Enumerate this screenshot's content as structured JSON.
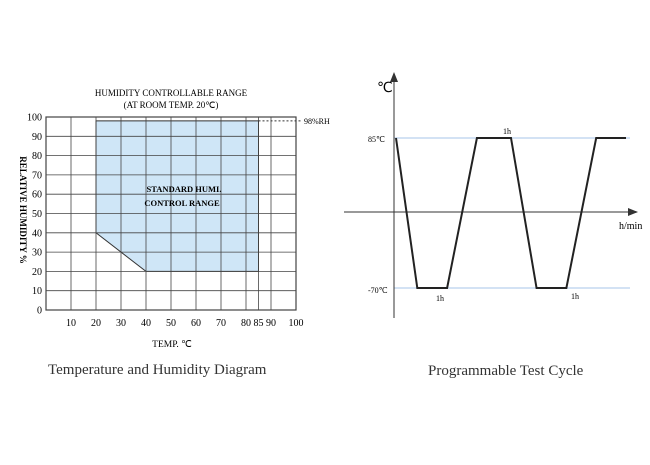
{
  "captions": {
    "left": "Temperature and Humidity Diagram",
    "right": "Programmable Test Cycle"
  },
  "colors": {
    "grid": "#444444",
    "region_fill": "#cfe6f7",
    "region_stroke": "#333333",
    "cycle_line": "#222222",
    "guide_line": "#8ab0e0"
  },
  "chart_data": [
    {
      "type": "area",
      "title": "HUMIDITY CONTROLLABLE RANGE",
      "subtitle": "(AT ROOM TEMP. 20℃)",
      "xlabel": "TEMP. ℃",
      "ylabel": "RELATIVE HUMIDITY %",
      "xlim": [
        0,
        100
      ],
      "ylim": [
        0,
        100
      ],
      "x_ticks": [
        10,
        20,
        30,
        40,
        50,
        60,
        70,
        80,
        85,
        90,
        100
      ],
      "y_ticks": [
        0,
        10,
        20,
        30,
        40,
        50,
        60,
        70,
        80,
        90,
        100
      ],
      "grid": true,
      "region": {
        "label_line1": "STANDARD HUMI.",
        "label_line2": "CONTROL RANGE",
        "x": [
          20,
          85,
          85,
          40,
          20
        ],
        "y": [
          98,
          98,
          20,
          20,
          40
        ]
      },
      "reference_line": {
        "y": 98,
        "label": "98%RH"
      }
    },
    {
      "type": "line",
      "ylabel": "℃",
      "xlabel": "h/min",
      "y_ticks": [
        {
          "value": 85,
          "label": "85℃"
        },
        {
          "value": -70,
          "label": "-70℃"
        }
      ],
      "x": [
        0,
        0.8,
        2.3,
        3.8,
        5.3,
        6.8,
        8.3,
        9.8,
        11.6
      ],
      "y": [
        85,
        -70,
        -70,
        85,
        85,
        -70,
        -70,
        85,
        85
      ],
      "series": [
        {
          "x": [
            0,
            1,
            2.4,
            3.8,
            5.4,
            6.6,
            8.0,
            9.4,
            10.8
          ],
          "y": [
            85,
            -70,
            -70,
            85,
            85,
            -70,
            -70,
            85,
            85
          ]
        }
      ],
      "segment_labels": [
        "1h",
        "1h",
        "1h"
      ]
    }
  ]
}
